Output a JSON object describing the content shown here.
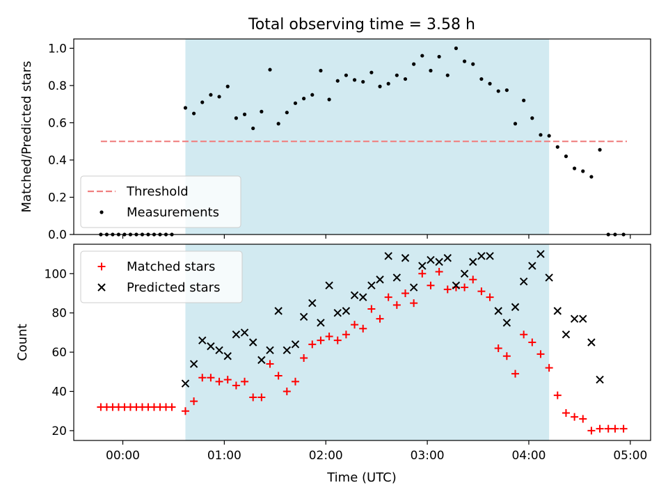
{
  "chart_data": {
    "title": "Total observing time = 3.58 h",
    "xlabel": "Time (UTC)",
    "x_unit": "minutes after 00:00 UTC",
    "xlim": [
      -29,
      312
    ],
    "xticks": [
      {
        "value": 0,
        "label": "00:00"
      },
      {
        "value": 60,
        "label": "01:00"
      },
      {
        "value": 120,
        "label": "02:00"
      },
      {
        "value": 180,
        "label": "03:00"
      },
      {
        "value": 240,
        "label": "04:00"
      },
      {
        "value": 300,
        "label": "05:00"
      }
    ],
    "observing_window": {
      "start": 37,
      "end": 252,
      "color": "#add8e6"
    },
    "panels": [
      {
        "type": "scatter",
        "ylabel": "Matched/Predicted stars",
        "ylim": [
          0,
          1.05
        ],
        "yticks": [
          0.0,
          0.2,
          0.4,
          0.6,
          0.8,
          1.0
        ],
        "ytick_labels": [
          "0.0",
          "0.2",
          "0.4",
          "0.6",
          "0.8",
          "1.0"
        ],
        "legend_position": "lower-left",
        "threshold": {
          "name": "Threshold",
          "value": 0.5,
          "x_range": [
            -13,
            298
          ],
          "color": "#f08080"
        },
        "series": [
          {
            "name": "Measurements",
            "marker": "dot",
            "color": "#000000",
            "points": [
              [
                -13,
                0
              ],
              [
                -9.5,
                0
              ],
              [
                -6,
                0
              ],
              [
                -2.5,
                0
              ],
              [
                1,
                0
              ],
              [
                4.5,
                0
              ],
              [
                8,
                0
              ],
              [
                11.5,
                0
              ],
              [
                15,
                0
              ],
              [
                18.5,
                0
              ],
              [
                22,
                0
              ],
              [
                25.5,
                0
              ],
              [
                29,
                0
              ],
              [
                37,
                0.68
              ],
              [
                42,
                0.65
              ],
              [
                47,
                0.71
              ],
              [
                52,
                0.75
              ],
              [
                57,
                0.74
              ],
              [
                62,
                0.795
              ],
              [
                67,
                0.625
              ],
              [
                72,
                0.645
              ],
              [
                77,
                0.57
              ],
              [
                82,
                0.66
              ],
              [
                87,
                0.885
              ],
              [
                92,
                0.595
              ],
              [
                97,
                0.655
              ],
              [
                102,
                0.705
              ],
              [
                107,
                0.73
              ],
              [
                112,
                0.75
              ],
              [
                117,
                0.88
              ],
              [
                122,
                0.725
              ],
              [
                127,
                0.825
              ],
              [
                132,
                0.855
              ],
              [
                137,
                0.83
              ],
              [
                142,
                0.82
              ],
              [
                147,
                0.87
              ],
              [
                152,
                0.795
              ],
              [
                157,
                0.81
              ],
              [
                162,
                0.855
              ],
              [
                167,
                0.835
              ],
              [
                172,
                0.915
              ],
              [
                177,
                0.96
              ],
              [
                182,
                0.88
              ],
              [
                187,
                0.955
              ],
              [
                192,
                0.855
              ],
              [
                197,
                1.0
              ],
              [
                202,
                0.93
              ],
              [
                207,
                0.915
              ],
              [
                212,
                0.835
              ],
              [
                217,
                0.81
              ],
              [
                222,
                0.77
              ],
              [
                227,
                0.775
              ],
              [
                232,
                0.595
              ],
              [
                237,
                0.72
              ],
              [
                242,
                0.625
              ],
              [
                247,
                0.535
              ],
              [
                252,
                0.53
              ],
              [
                257,
                0.47
              ],
              [
                262,
                0.42
              ],
              [
                267,
                0.355
              ],
              [
                272,
                0.34
              ],
              [
                277,
                0.31
              ],
              [
                282,
                0.455
              ],
              [
                287,
                0
              ],
              [
                291,
                0
              ],
              [
                296,
                0
              ]
            ]
          }
        ]
      },
      {
        "type": "scatter",
        "ylabel": "Count",
        "ylim": [
          15,
          115
        ],
        "yticks": [
          20,
          40,
          60,
          80,
          100
        ],
        "ytick_labels": [
          "20",
          "40",
          "60",
          "80",
          "100"
        ],
        "legend_position": "upper-left",
        "series": [
          {
            "name": "Matched stars",
            "marker": "plus",
            "color": "#ff0000",
            "points": [
              [
                -13,
                32
              ],
              [
                -9.5,
                32
              ],
              [
                -6,
                32
              ],
              [
                -2.5,
                32
              ],
              [
                1,
                32
              ],
              [
                4.5,
                32
              ],
              [
                8,
                32
              ],
              [
                11.5,
                32
              ],
              [
                15,
                32
              ],
              [
                18.5,
                32
              ],
              [
                22,
                32
              ],
              [
                25.5,
                32
              ],
              [
                29,
                32
              ],
              [
                37,
                30
              ],
              [
                42,
                35
              ],
              [
                47,
                47
              ],
              [
                52,
                47
              ],
              [
                57,
                45
              ],
              [
                62,
                46
              ],
              [
                67,
                43
              ],
              [
                72,
                45
              ],
              [
                77,
                37
              ],
              [
                82,
                37
              ],
              [
                87,
                54
              ],
              [
                92,
                48
              ],
              [
                97,
                40
              ],
              [
                102,
                45
              ],
              [
                107,
                57
              ],
              [
                112,
                64
              ],
              [
                117,
                66
              ],
              [
                122,
                68
              ],
              [
                127,
                66
              ],
              [
                132,
                69
              ],
              [
                137,
                74
              ],
              [
                142,
                72
              ],
              [
                147,
                82
              ],
              [
                152,
                77
              ],
              [
                157,
                88
              ],
              [
                162,
                84
              ],
              [
                167,
                90
              ],
              [
                172,
                85
              ],
              [
                177,
                100
              ],
              [
                182,
                94
              ],
              [
                187,
                101
              ],
              [
                192,
                92
              ],
              [
                197,
                93
              ],
              [
                202,
                93
              ],
              [
                207,
                97
              ],
              [
                212,
                91
              ],
              [
                217,
                88
              ],
              [
                222,
                62
              ],
              [
                227,
                58
              ],
              [
                232,
                49
              ],
              [
                237,
                69
              ],
              [
                242,
                65
              ],
              [
                247,
                59
              ],
              [
                252,
                52
              ],
              [
                257,
                38
              ],
              [
                262,
                29
              ],
              [
                267,
                27
              ],
              [
                272,
                26
              ],
              [
                277,
                20
              ],
              [
                282,
                21
              ],
              [
                287,
                21
              ],
              [
                291,
                21
              ],
              [
                296,
                21
              ]
            ]
          },
          {
            "name": "Predicted stars",
            "marker": "x",
            "color": "#000000",
            "points": [
              [
                37,
                44
              ],
              [
                42,
                54
              ],
              [
                47,
                66
              ],
              [
                52,
                63
              ],
              [
                57,
                61
              ],
              [
                62,
                58
              ],
              [
                67,
                69
              ],
              [
                72,
                70
              ],
              [
                77,
                65
              ],
              [
                82,
                56
              ],
              [
                87,
                61
              ],
              [
                92,
                81
              ],
              [
                97,
                61
              ],
              [
                102,
                64
              ],
              [
                107,
                78
              ],
              [
                112,
                85
              ],
              [
                117,
                75
              ],
              [
                122,
                94
              ],
              [
                127,
                80
              ],
              [
                132,
                81
              ],
              [
                137,
                89
              ],
              [
                142,
                88
              ],
              [
                147,
                94
              ],
              [
                152,
                97
              ],
              [
                157,
                109
              ],
              [
                162,
                98
              ],
              [
                167,
                108
              ],
              [
                172,
                93
              ],
              [
                177,
                104
              ],
              [
                182,
                107
              ],
              [
                187,
                106
              ],
              [
                192,
                108
              ],
              [
                197,
                94
              ],
              [
                202,
                100
              ],
              [
                207,
                106
              ],
              [
                212,
                109
              ],
              [
                217,
                109
              ],
              [
                222,
                81
              ],
              [
                227,
                75
              ],
              [
                232,
                83
              ],
              [
                237,
                96
              ],
              [
                242,
                104
              ],
              [
                247,
                110
              ],
              [
                252,
                98
              ],
              [
                257,
                81
              ],
              [
                262,
                69
              ],
              [
                267,
                77
              ],
              [
                272,
                77
              ],
              [
                277,
                65
              ],
              [
                282,
                46
              ]
            ]
          }
        ]
      }
    ]
  }
}
